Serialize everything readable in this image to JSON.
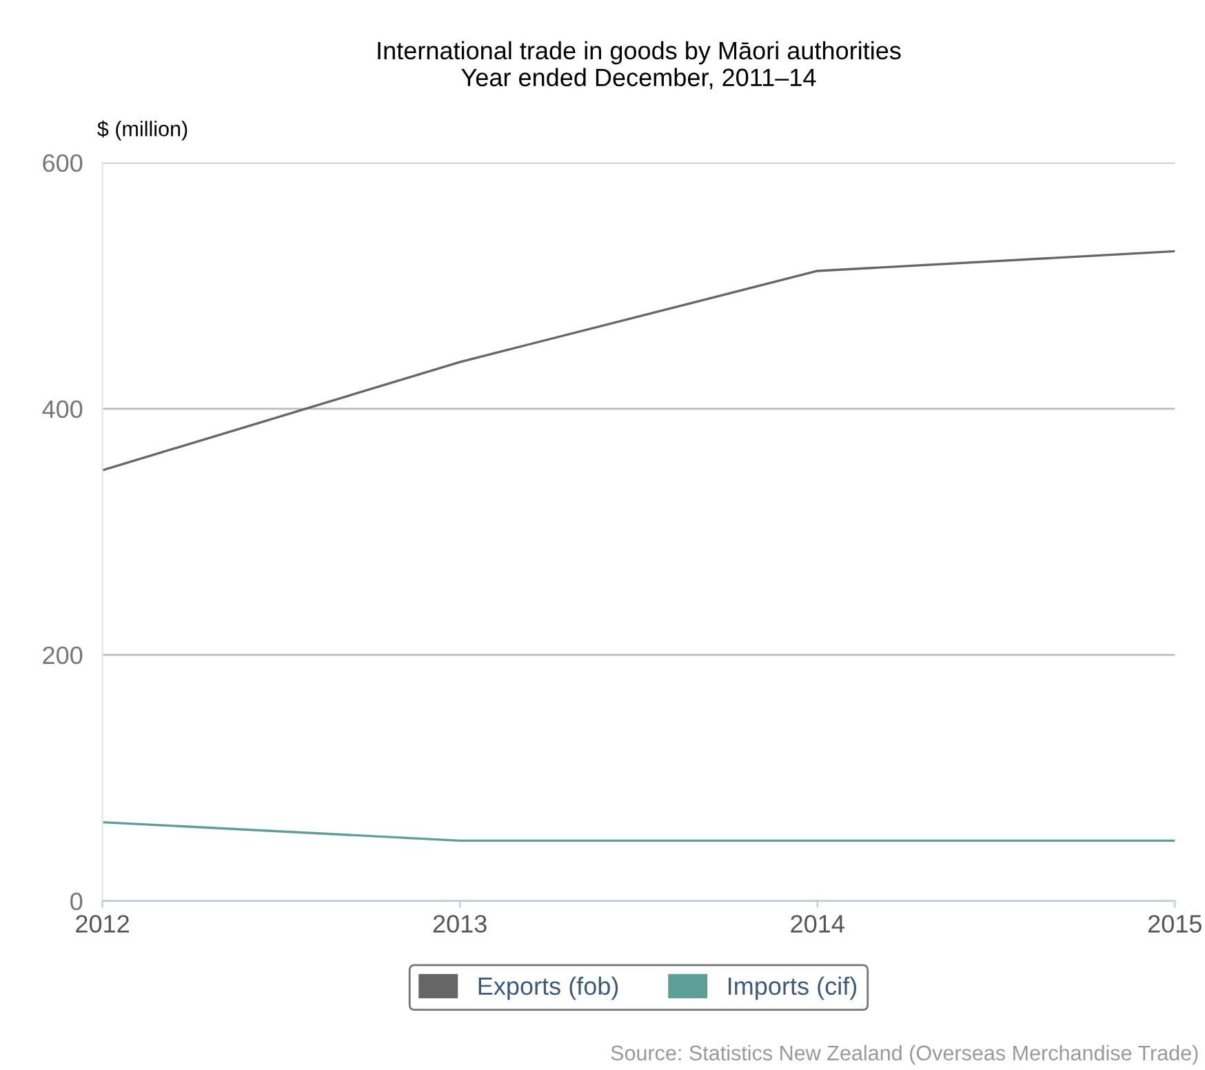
{
  "chart_data": {
    "type": "line",
    "title": "International trade in goods by Māori authorities\nYear ended December, 2011–14",
    "ylabel": "$ (million)",
    "x": [
      2012,
      2013,
      2014,
      2015
    ],
    "series": [
      {
        "name": "Exports (fob)",
        "color": "#666666",
        "values": [
          350,
          438,
          512,
          528
        ]
      },
      {
        "name": "Imports (cif)",
        "color": "#5f9e96",
        "values": [
          64,
          49,
          49,
          49
        ]
      }
    ],
    "xlim": [
      2012,
      2015
    ],
    "xticks": [
      2012,
      2013,
      2014,
      2015
    ],
    "ylim": [
      0,
      600
    ],
    "yticks": [
      0,
      200,
      400,
      600
    ],
    "grid": "y",
    "legend": "bottom",
    "marker": "none",
    "line_style": "solid",
    "annotations": [
      "Source: Statistics New Zealand (Overseas Merchandise Trade)"
    ]
  }
}
